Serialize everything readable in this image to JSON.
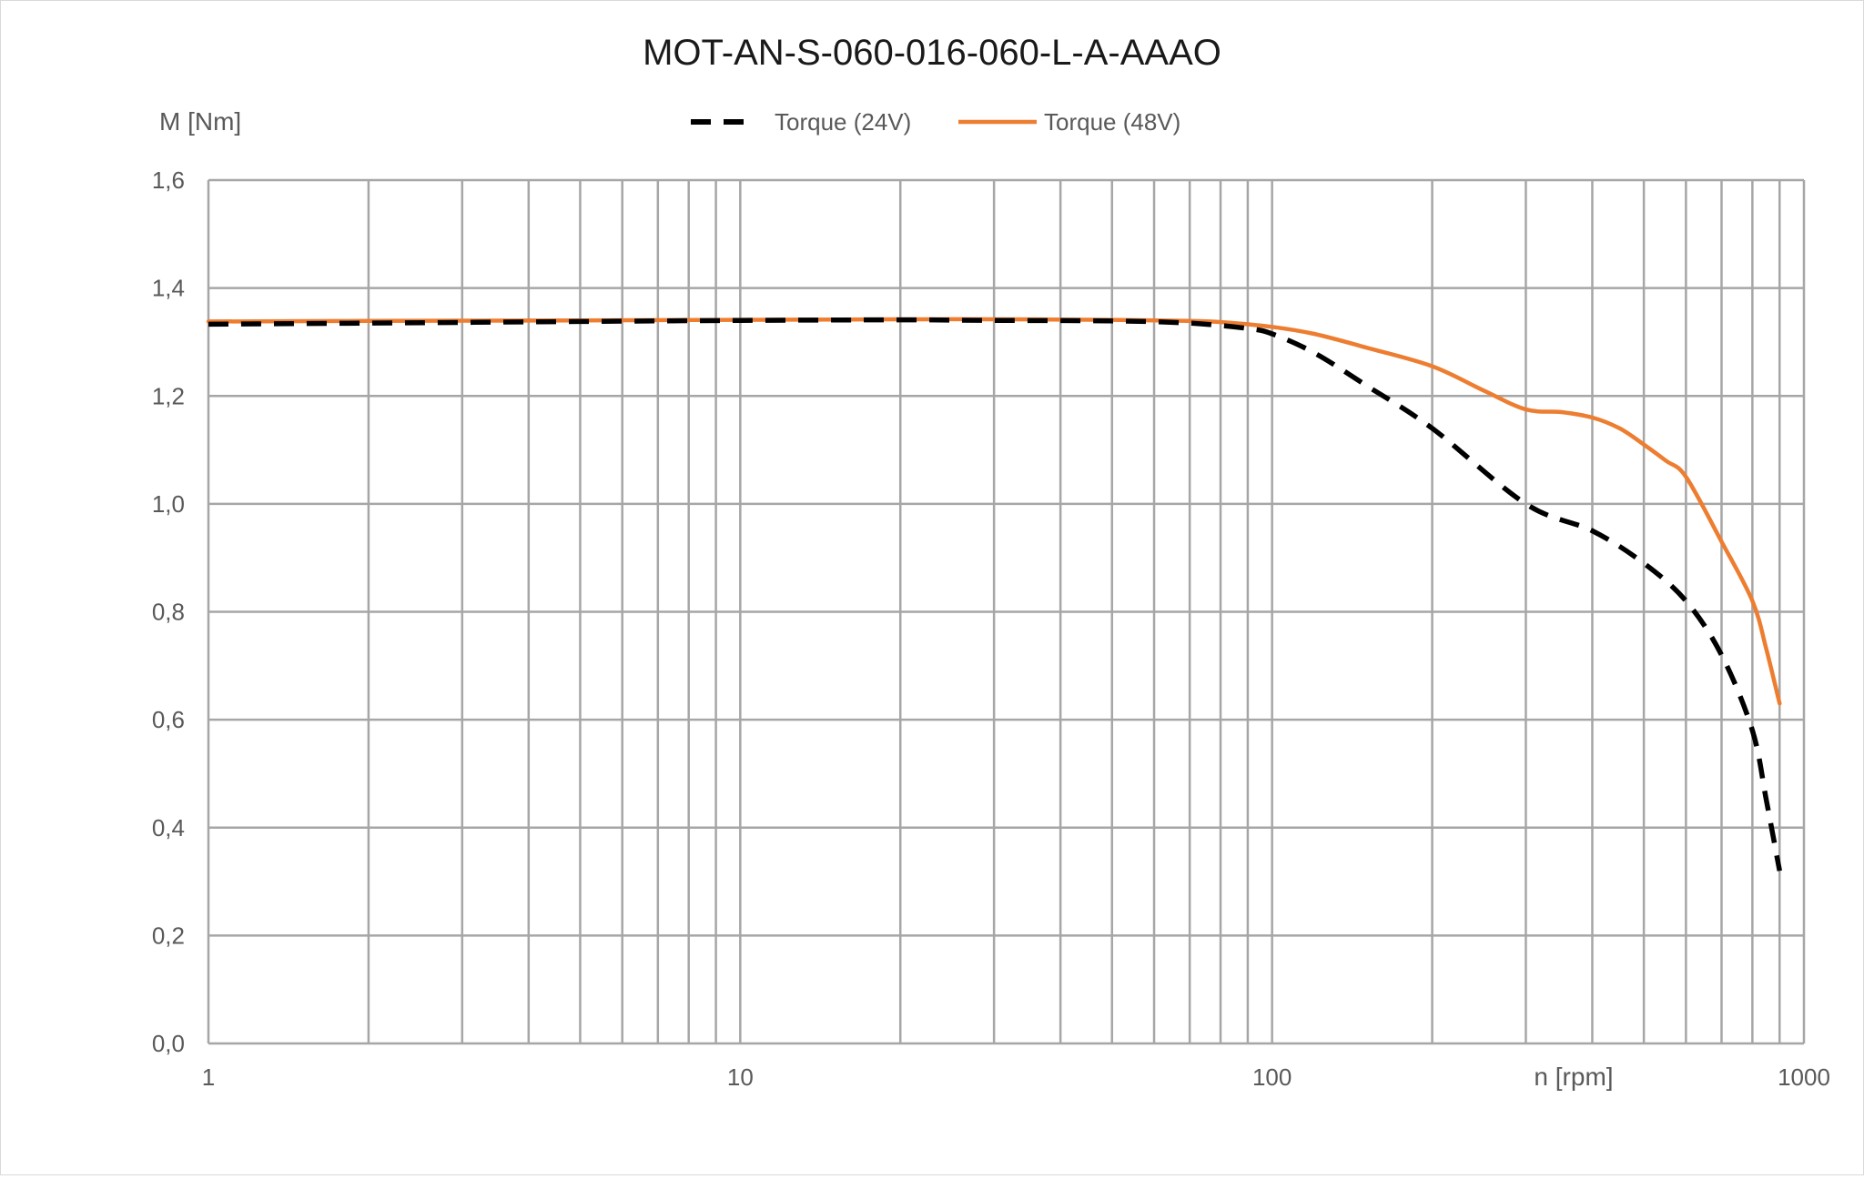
{
  "chart_data": {
    "type": "line",
    "title": "MOT-AN-S-060-016-060-L-A-AAAO",
    "xlabel": "n [rpm]",
    "ylabel": "M [Nm]",
    "x_scale": "log",
    "xlim": [
      1,
      1000
    ],
    "ylim": [
      0,
      1.6
    ],
    "x_ticks": [
      {
        "value": 1,
        "label": "1"
      },
      {
        "value": 10,
        "label": "10"
      },
      {
        "value": 100,
        "label": "100"
      },
      {
        "value": 1000,
        "label": "1000"
      }
    ],
    "y_ticks": [
      {
        "value": 0,
        "label": "0,0"
      },
      {
        "value": 0.2,
        "label": "0,2"
      },
      {
        "value": 0.4,
        "label": "0,4"
      },
      {
        "value": 0.6,
        "label": "0,6"
      },
      {
        "value": 0.8,
        "label": "0,8"
      },
      {
        "value": 1.0,
        "label": "1,0"
      },
      {
        "value": 1.2,
        "label": "1,2"
      },
      {
        "value": 1.4,
        "label": "1,4"
      },
      {
        "value": 1.6,
        "label": "1,6"
      }
    ],
    "grid": true,
    "legend_position": "top-center",
    "series": [
      {
        "name": "Torque (24V)",
        "color": "#000000",
        "line_style": "dashed",
        "x": [
          1,
          2,
          5,
          10,
          20,
          30,
          50,
          70,
          90,
          100,
          120,
          150,
          200,
          300,
          400,
          500,
          600,
          700,
          800,
          850,
          900
        ],
        "y": [
          1.333,
          1.335,
          1.338,
          1.34,
          1.341,
          1.34,
          1.339,
          1.335,
          1.325,
          1.315,
          1.28,
          1.22,
          1.14,
          1.0,
          0.95,
          0.89,
          0.82,
          0.72,
          0.58,
          0.45,
          0.32
        ]
      },
      {
        "name": "Torque (48V)",
        "color": "#ED7D31",
        "line_style": "solid",
        "x": [
          1,
          2,
          5,
          10,
          20,
          30,
          50,
          70,
          80,
          100,
          120,
          150,
          200,
          250,
          300,
          350,
          400,
          450,
          500,
          550,
          600,
          700,
          800,
          850,
          900
        ],
        "y": [
          1.338,
          1.339,
          1.34,
          1.341,
          1.342,
          1.342,
          1.341,
          1.339,
          1.337,
          1.328,
          1.315,
          1.29,
          1.255,
          1.21,
          1.175,
          1.17,
          1.16,
          1.14,
          1.11,
          1.08,
          1.05,
          0.93,
          0.82,
          0.73,
          0.63
        ]
      }
    ]
  }
}
